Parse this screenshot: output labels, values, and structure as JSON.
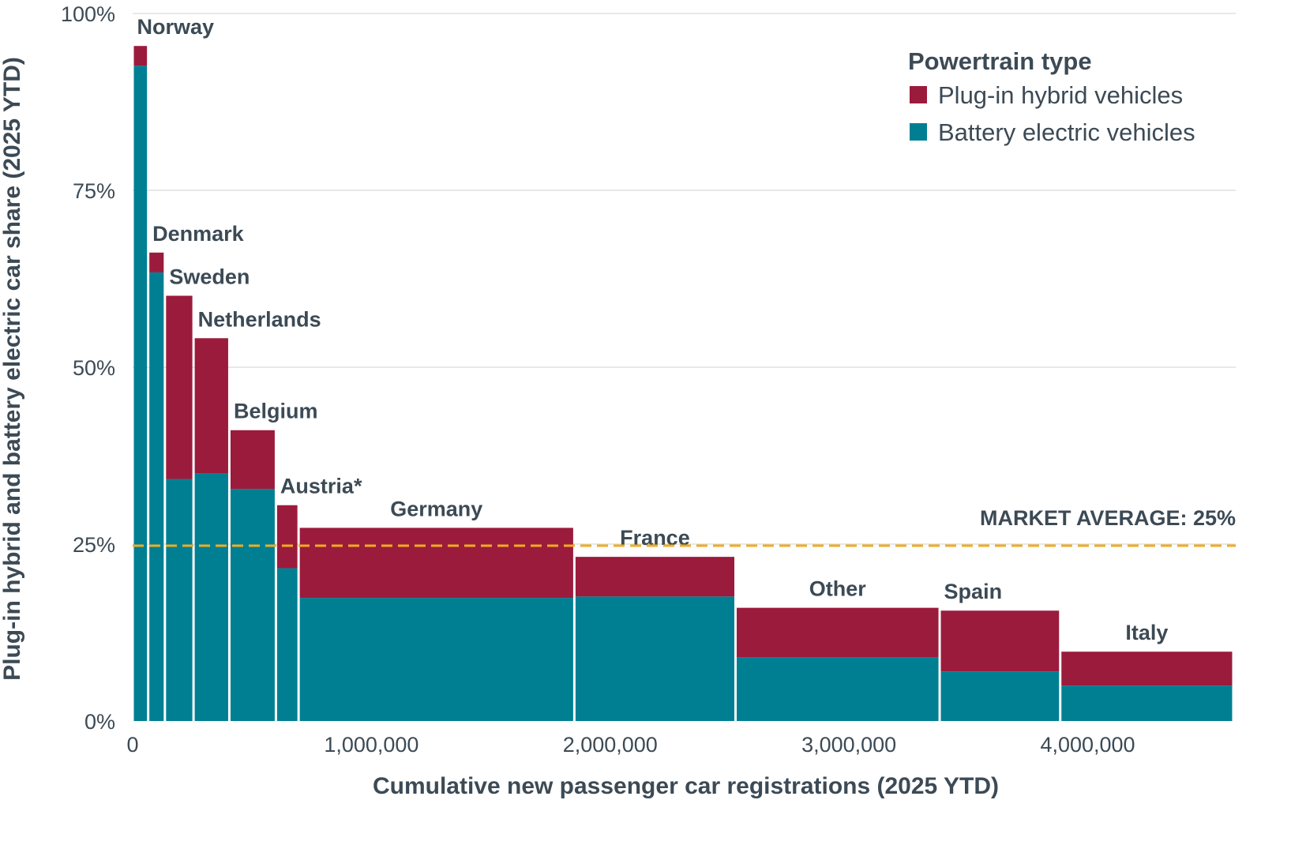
{
  "chart_data": {
    "type": "bar",
    "subtype": "marimekko (variable-width stacked bar)",
    "xlabel": "Cumulative new passenger car registrations (2025 YTD)",
    "ylabel": "Plug-in hybrid and battery electric car share (2025 YTD)",
    "xlim": [
      0,
      4620000
    ],
    "ylim": [
      0,
      100
    ],
    "x_ticks": [
      0,
      1000000,
      2000000,
      3000000,
      4000000
    ],
    "x_tick_labels": [
      "0",
      "1,000,000",
      "2,000,000",
      "3,000,000",
      "4,000,000"
    ],
    "y_ticks": [
      0,
      25,
      50,
      75,
      100
    ],
    "y_tick_labels": [
      "0%",
      "25%",
      "50%",
      "75%",
      "100%"
    ],
    "categories": [
      "Norway",
      "Denmark",
      "Sweden",
      "Netherlands",
      "Belgium",
      "Austria*",
      "Germany",
      "France",
      "Other",
      "Spain",
      "Italy"
    ],
    "registrations": [
      65000,
      70000,
      120000,
      150000,
      195000,
      95000,
      1155000,
      675000,
      855000,
      505000,
      725000
    ],
    "series": [
      {
        "name": "Battery electric vehicles",
        "color": "#007f93",
        "values": [
          92.6,
          63.4,
          34.2,
          35.0,
          32.8,
          21.6,
          17.4,
          17.6,
          9.0,
          7.0,
          5.0
        ]
      },
      {
        "name": "Plug-in hybrid vehicles",
        "color": "#9b1b3c",
        "values": [
          2.8,
          2.8,
          25.9,
          19.1,
          8.3,
          8.9,
          9.9,
          5.6,
          7.0,
          8.6,
          4.8
        ]
      }
    ],
    "legend": {
      "title": "Powertrain type",
      "position": "top-right",
      "items": [
        "Plug-in hybrid vehicles",
        "Battery electric vehicles"
      ]
    },
    "reference_line": {
      "label": "MARKET AVERAGE: 25%",
      "value": 25,
      "color": "#f0ac20"
    },
    "gridlines": true
  }
}
